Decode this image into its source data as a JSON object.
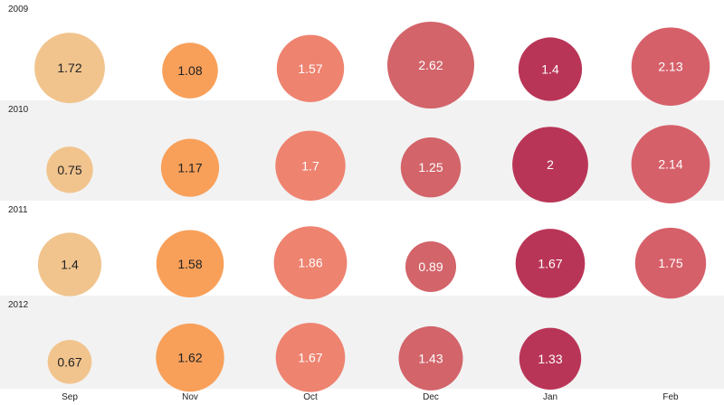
{
  "chart_data": {
    "type": "bubble-grid",
    "title": "",
    "xlabel": "",
    "ylabel": "",
    "categories": [
      "Sep",
      "Nov",
      "Oct",
      "Dec",
      "Jan",
      "Feb"
    ],
    "series": [
      {
        "name": "2009",
        "values": [
          1.72,
          1.08,
          1.57,
          2.62,
          1.4,
          2.13
        ]
      },
      {
        "name": "2010",
        "values": [
          0.75,
          1.17,
          1.7,
          1.25,
          2,
          2.14
        ]
      },
      {
        "name": "2011",
        "values": [
          1.4,
          1.58,
          1.86,
          0.89,
          1.67,
          1.75
        ]
      },
      {
        "name": "2012",
        "values": [
          0.67,
          1.62,
          1.67,
          1.43,
          1.33,
          null
        ]
      }
    ],
    "category_colors": [
      "#f1c48e",
      "#f8a05a",
      "#ee8370",
      "#d2646a",
      "#b93557",
      "#d6606a"
    ],
    "row_band_colors": [
      "#ffffff",
      "#f2f2f2"
    ],
    "label_colors": {
      "light_fill": "#222222",
      "dark_fill": "#ffffff"
    },
    "max_value": 2.62
  }
}
